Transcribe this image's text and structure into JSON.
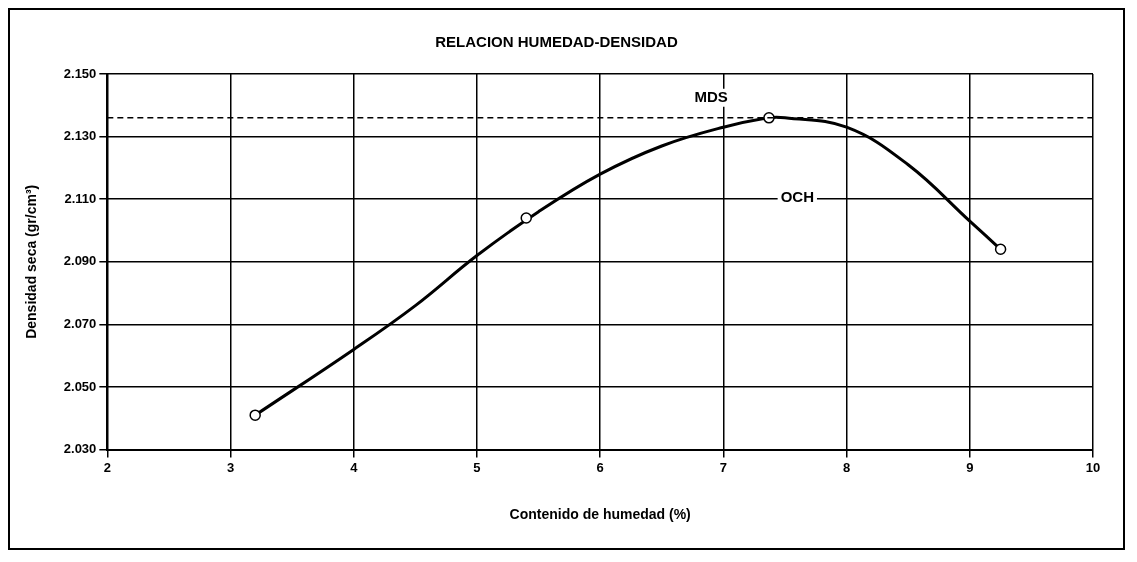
{
  "chart_data": {
    "type": "scatter",
    "title": "RELACION HUMEDAD-DENSIDAD",
    "xlabel": "Contenido de humedad (%)",
    "ylabel": "Densidad seca (gr/cm³)",
    "xlim": [
      2,
      10
    ],
    "xticks": [
      2,
      3,
      4,
      5,
      6,
      7,
      8,
      9,
      10
    ],
    "ylim": [
      2.03,
      2.15
    ],
    "yticks": [
      {
        "value": 2.03,
        "label": "2.030"
      },
      {
        "value": 2.05,
        "label": "2.050"
      },
      {
        "value": 2.07,
        "label": "2.070"
      },
      {
        "value": 2.09,
        "label": "2.090"
      },
      {
        "value": 2.11,
        "label": "2.110"
      },
      {
        "value": 2.13,
        "label": "2.130"
      },
      {
        "value": 2.15,
        "label": "2.150"
      }
    ],
    "grid": true,
    "legend": false,
    "series": [
      {
        "type": "line",
        "color": "#000000",
        "marker": "none",
        "x": [
          3.2,
          4,
          4.5,
          5,
          5.5,
          6,
          6.5,
          7,
          7.37,
          7.5,
          8,
          8.5,
          9,
          9.25
        ],
        "values": [
          2.041,
          2.062,
          2.076,
          2.092,
          2.106,
          2.118,
          2.127,
          2.133,
          2.136,
          2.136,
          2.133,
          2.121,
          2.103,
          2.094
        ]
      },
      {
        "color": "#000000",
        "marker": "circle",
        "x": [
          3.2,
          5.4,
          7.37,
          9.25
        ],
        "values": [
          2.041,
          2.104,
          2.136,
          2.094
        ]
      }
    ],
    "ref_lines": [
      {
        "axis": "y",
        "value": 2.136,
        "label": "MDS",
        "line_style": "dashed",
        "color": "#000000"
      }
    ],
    "annotations": [
      "OCH"
    ]
  }
}
